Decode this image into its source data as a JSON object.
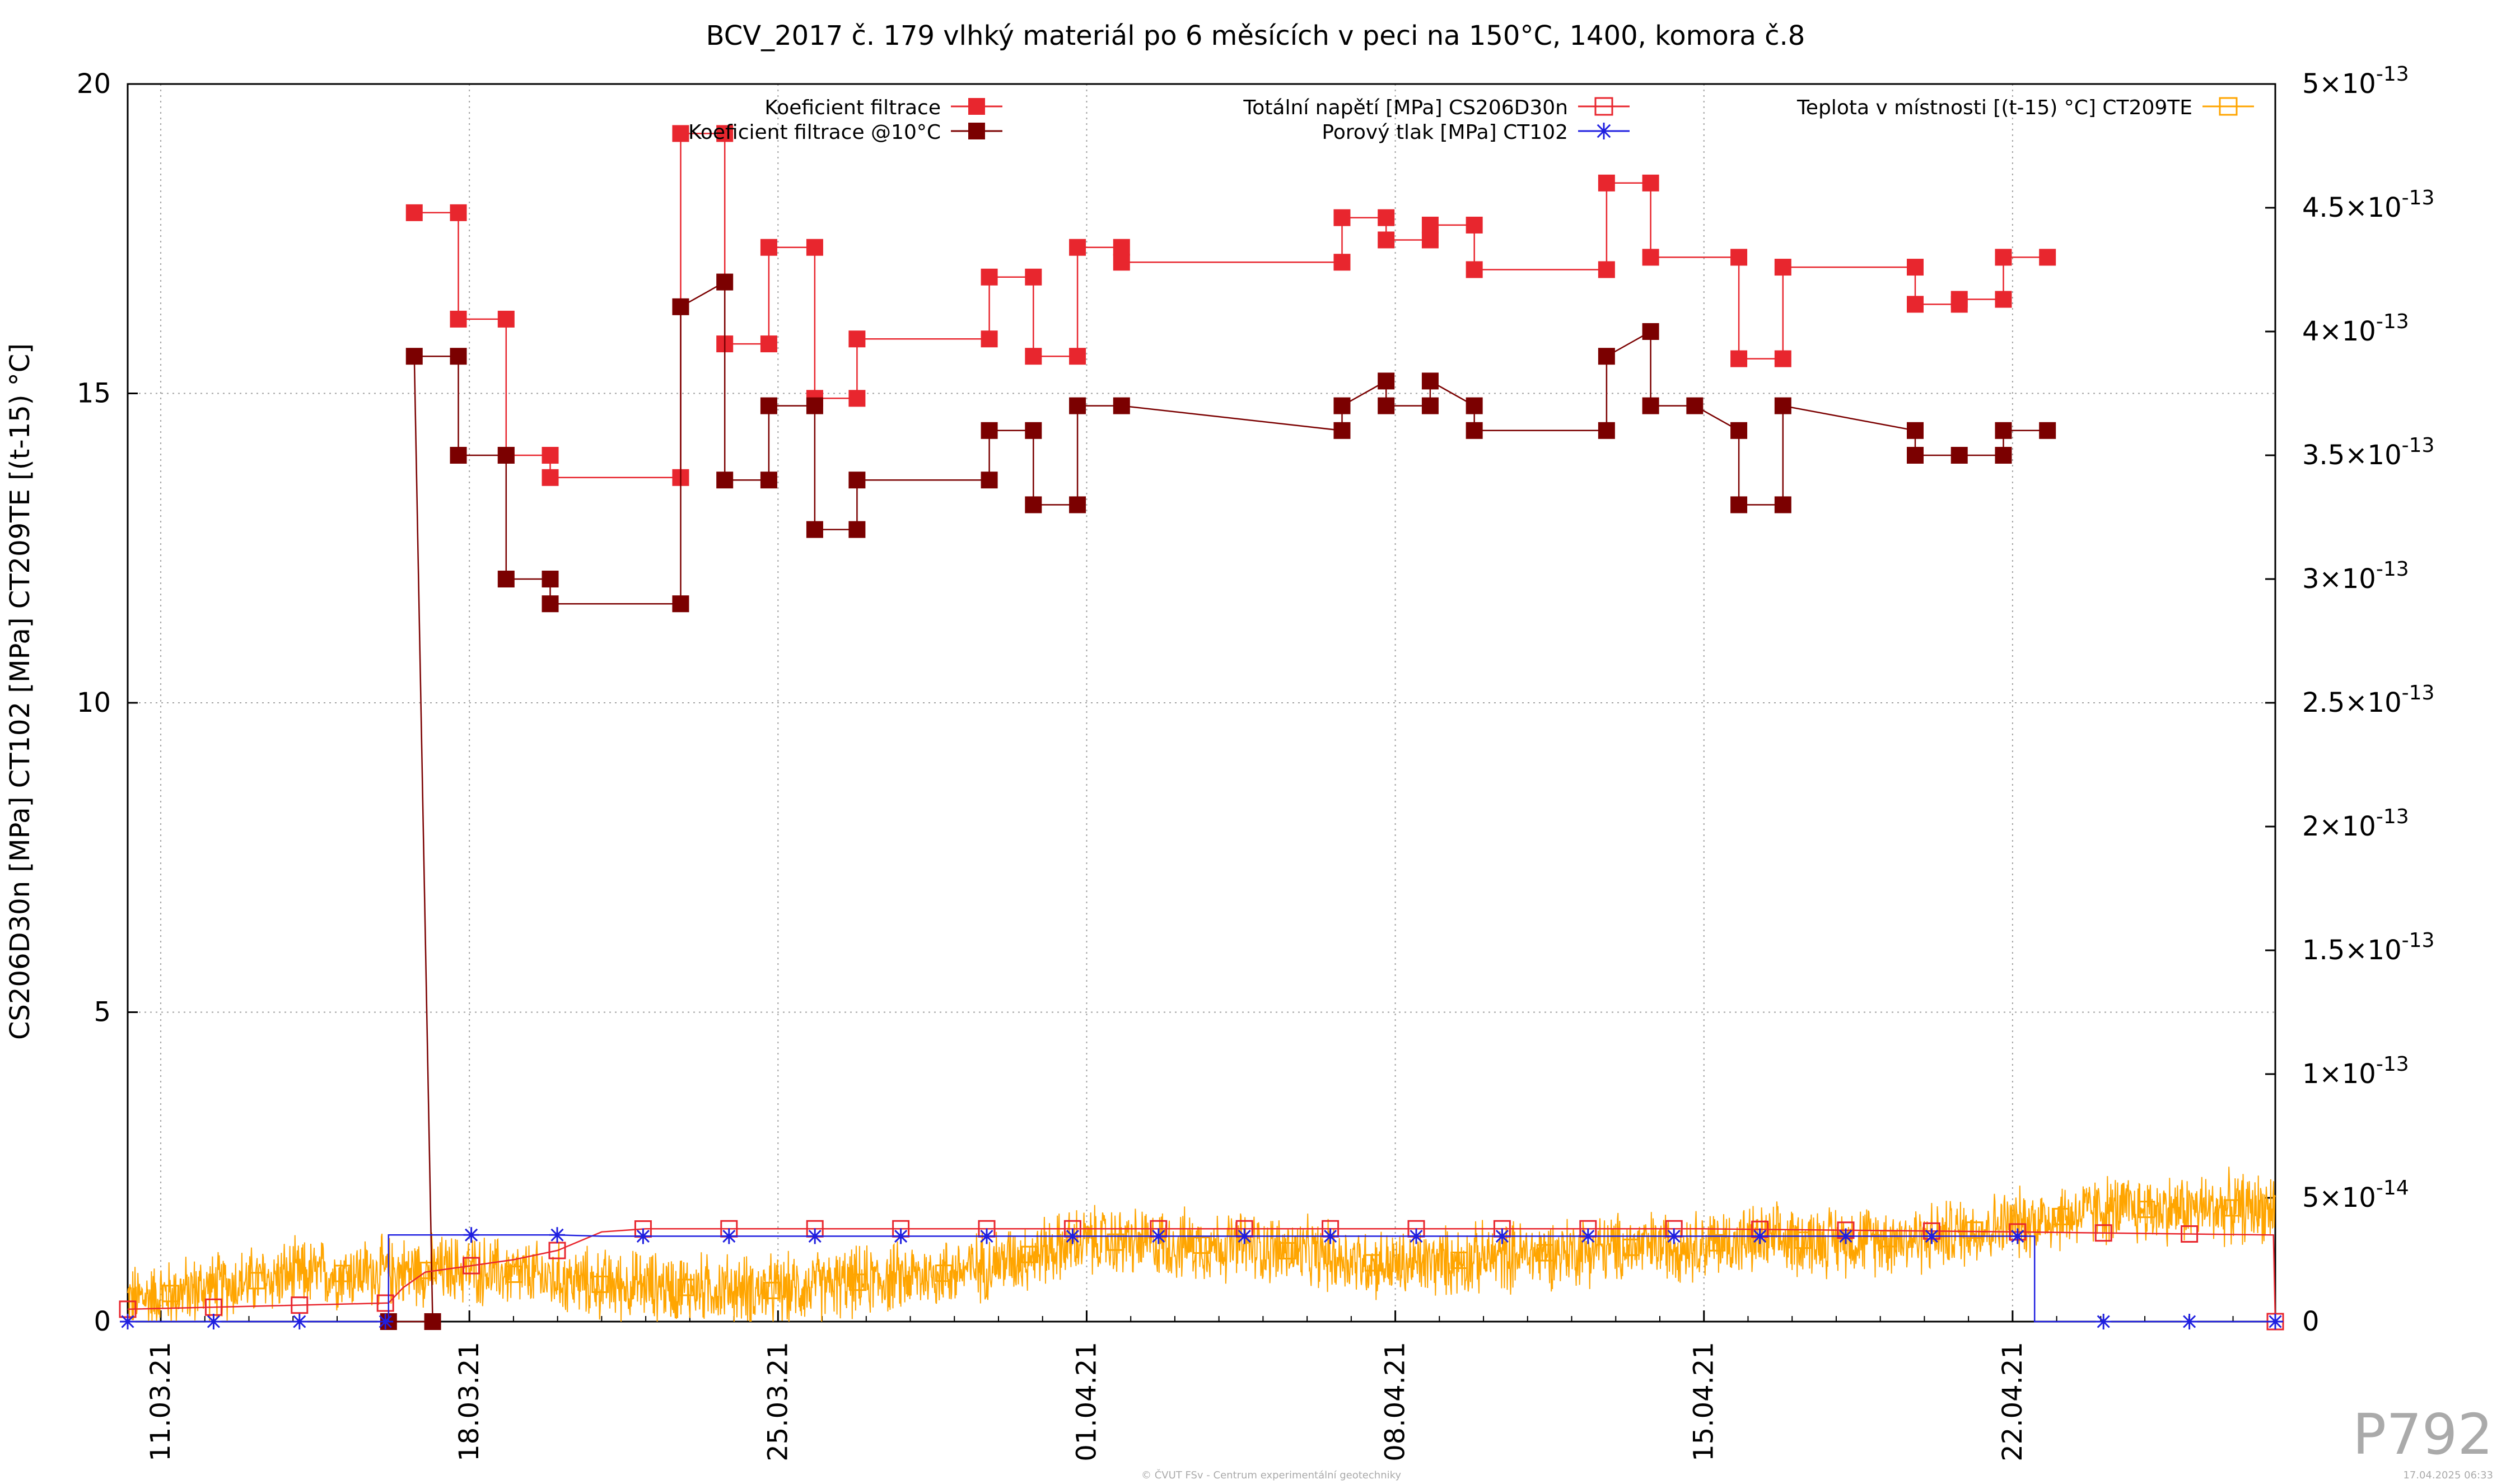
{
  "chart_data": {
    "type": "line",
    "title": "BCV_2017 č. 179 vlhký materiál po 6 měsících v peci na 150°C, 1400, komora č.8",
    "ylabel": "CS206D30n [MPa] CT102 [MPa] CT209TE [(t-15) °C]",
    "ylim": [
      0,
      20
    ],
    "y_ticks": [
      "0",
      "5",
      "10",
      "15",
      "20"
    ],
    "y2lim": [
      0,
      5e-13
    ],
    "y2_ticks": [
      {
        "mant": "0",
        "exp": ""
      },
      {
        "mant": "5×10",
        "exp": "-14"
      },
      {
        "mant": "1×10",
        "exp": "-13"
      },
      {
        "mant": "1.5×10",
        "exp": "-13"
      },
      {
        "mant": "2×10",
        "exp": "-13"
      },
      {
        "mant": "2.5×10",
        "exp": "-13"
      },
      {
        "mant": "3×10",
        "exp": "-13"
      },
      {
        "mant": "3.5×10",
        "exp": "-13"
      },
      {
        "mant": "4×10",
        "exp": "-13"
      },
      {
        "mant": "4.5×10",
        "exp": "-13"
      },
      {
        "mant": "5×10",
        "exp": "-13"
      }
    ],
    "xlim": [
      "2021-03-10 06:00",
      "2021-04-27 23:00"
    ],
    "x_ticks": [
      "11.03.21",
      "18.03.21",
      "25.03.21",
      "01.04.21",
      "08.04.21",
      "15.04.21",
      "22.04.21"
    ],
    "grid": true,
    "legend_position": "top",
    "series": [
      {
        "name": "Koeficient filtrace",
        "axis": "y2",
        "color": "#e8262e",
        "marker": "filled-square",
        "points": [
          [
            "2021-03-16 18:00",
            4.48e-13
          ],
          [
            "2021-03-17 18:00",
            4.48e-13
          ],
          [
            "2021-03-17 18:00",
            4.05e-13
          ],
          [
            "2021-03-18 20:00",
            4.05e-13
          ],
          [
            "2021-03-18 20:00",
            3.5e-13
          ],
          [
            "2021-03-19 20:00",
            3.5e-13
          ],
          [
            "2021-03-19 20:00",
            3.41e-13
          ],
          [
            "2021-03-22 19:00",
            3.41e-13
          ],
          [
            "2021-03-22 19:00",
            4.8e-13
          ],
          [
            "2021-03-23 19:00",
            4.8e-13
          ],
          [
            "2021-03-23 19:00",
            3.95e-13
          ],
          [
            "2021-03-24 19:00",
            3.95e-13
          ],
          [
            "2021-03-24 19:00",
            4.34e-13
          ],
          [
            "2021-03-25 20:00",
            4.34e-13
          ],
          [
            "2021-03-25 20:00",
            3.73e-13
          ],
          [
            "2021-03-26 19:00",
            3.73e-13
          ],
          [
            "2021-03-26 19:00",
            3.97e-13
          ],
          [
            "2021-03-29 19:00",
            3.97e-13
          ],
          [
            "2021-03-29 19:00",
            4.22e-13
          ],
          [
            "2021-03-30 19:00",
            4.22e-13
          ],
          [
            "2021-03-30 19:00",
            3.9e-13
          ],
          [
            "2021-03-31 19:00",
            3.9e-13
          ],
          [
            "2021-03-31 19:00",
            4.34e-13
          ],
          [
            "2021-04-01 19:00",
            4.34e-13
          ],
          [
            "2021-04-01 19:00",
            4.28e-13
          ],
          [
            "2021-04-06 19:00",
            4.28e-13
          ],
          [
            "2021-04-06 19:00",
            4.46e-13
          ],
          [
            "2021-04-07 19:00",
            4.46e-13
          ],
          [
            "2021-04-07 19:00",
            4.37e-13
          ],
          [
            "2021-04-08 19:00",
            4.37e-13
          ],
          [
            "2021-04-08 19:00",
            4.43e-13
          ],
          [
            "2021-04-09 19:00",
            4.43e-13
          ],
          [
            "2021-04-09 19:00",
            4.25e-13
          ],
          [
            "2021-04-12 19:00",
            4.25e-13
          ],
          [
            "2021-04-12 19:00",
            4.6e-13
          ],
          [
            "2021-04-13 19:00",
            4.6e-13
          ],
          [
            "2021-04-13 19:00",
            4.3e-13
          ],
          [
            "2021-04-15 19:00",
            4.3e-13
          ],
          [
            "2021-04-15 19:00",
            3.89e-13
          ],
          [
            "2021-04-16 19:00",
            3.89e-13
          ],
          [
            "2021-04-16 19:00",
            4.26e-13
          ],
          [
            "2021-04-19 19:00",
            4.26e-13
          ],
          [
            "2021-04-19 19:00",
            4.11e-13
          ],
          [
            "2021-04-20 19:00",
            4.11e-13
          ],
          [
            "2021-04-20 19:00",
            4.13e-13
          ],
          [
            "2021-04-21 19:00",
            4.13e-13
          ],
          [
            "2021-04-21 19:00",
            4.3e-13
          ],
          [
            "2021-04-22 19:00",
            4.3e-13
          ]
        ]
      },
      {
        "name": "Koeficient filtrace @10°C",
        "axis": "y2",
        "color": "#7b0000",
        "marker": "filled-square",
        "points": [
          [
            "2021-03-16 04:00",
            0
          ],
          [
            "2021-03-17 04:00",
            0
          ],
          [
            "2021-03-16 18:00",
            3.9e-13
          ],
          [
            "2021-03-17 18:00",
            3.9e-13
          ],
          [
            "2021-03-17 18:00",
            3.5e-13
          ],
          [
            "2021-03-18 20:00",
            3.5e-13
          ],
          [
            "2021-03-18 20:00",
            3e-13
          ],
          [
            "2021-03-19 20:00",
            3e-13
          ],
          [
            "2021-03-19 20:00",
            2.9e-13
          ],
          [
            "2021-03-22 19:00",
            2.9e-13
          ],
          [
            "2021-03-22 19:00",
            4.1e-13
          ],
          [
            "2021-03-23 19:00",
            4.2e-13
          ],
          [
            "2021-03-23 19:00",
            3.4e-13
          ],
          [
            "2021-03-24 19:00",
            3.4e-13
          ],
          [
            "2021-03-24 19:00",
            3.7e-13
          ],
          [
            "2021-03-25 20:00",
            3.7e-13
          ],
          [
            "2021-03-25 20:00",
            3.2e-13
          ],
          [
            "2021-03-26 19:00",
            3.2e-13
          ],
          [
            "2021-03-26 19:00",
            3.4e-13
          ],
          [
            "2021-03-29 19:00",
            3.4e-13
          ],
          [
            "2021-03-29 19:00",
            3.6e-13
          ],
          [
            "2021-03-30 19:00",
            3.6e-13
          ],
          [
            "2021-03-30 19:00",
            3.3e-13
          ],
          [
            "2021-03-31 19:00",
            3.3e-13
          ],
          [
            "2021-03-31 19:00",
            3.7e-13
          ],
          [
            "2021-04-01 19:00",
            3.7e-13
          ],
          [
            "2021-04-06 19:00",
            3.6e-13
          ],
          [
            "2021-04-06 19:00",
            3.7e-13
          ],
          [
            "2021-04-07 19:00",
            3.8e-13
          ],
          [
            "2021-04-07 19:00",
            3.7e-13
          ],
          [
            "2021-04-08 19:00",
            3.7e-13
          ],
          [
            "2021-04-08 19:00",
            3.8e-13
          ],
          [
            "2021-04-09 19:00",
            3.7e-13
          ],
          [
            "2021-04-09 19:00",
            3.6e-13
          ],
          [
            "2021-04-12 19:00",
            3.6e-13
          ],
          [
            "2021-04-12 19:00",
            3.9e-13
          ],
          [
            "2021-04-13 19:00",
            4e-13
          ],
          [
            "2021-04-13 19:00",
            3.7e-13
          ],
          [
            "2021-04-14 19:00",
            3.7e-13
          ],
          [
            "2021-04-15 19:00",
            3.6e-13
          ],
          [
            "2021-04-15 19:00",
            3.3e-13
          ],
          [
            "2021-04-16 19:00",
            3.3e-13
          ],
          [
            "2021-04-16 19:00",
            3.7e-13
          ],
          [
            "2021-04-19 19:00",
            3.6e-13
          ],
          [
            "2021-04-19 19:00",
            3.5e-13
          ],
          [
            "2021-04-20 19:00",
            3.5e-13
          ],
          [
            "2021-04-21 19:00",
            3.5e-13
          ],
          [
            "2021-04-21 19:00",
            3.6e-13
          ],
          [
            "2021-04-22 19:00",
            3.6e-13
          ]
        ]
      },
      {
        "name": "Totální napětí [MPa] CS206D30n",
        "axis": "y",
        "color": "#e8262e",
        "marker": "open-square",
        "points": [
          [
            "2021-03-10 06:00",
            0.2
          ],
          [
            "2021-03-16 04:00",
            0.3
          ],
          [
            "2021-03-16 12:00",
            0.55
          ],
          [
            "2021-03-17 00:00",
            0.8
          ],
          [
            "2021-03-18 00:00",
            0.9
          ],
          [
            "2021-03-19 00:00",
            1.0
          ],
          [
            "2021-03-20 00:00",
            1.15
          ],
          [
            "2021-03-21 00:00",
            1.45
          ],
          [
            "2021-03-22 00:00",
            1.5
          ],
          [
            "2021-03-25 00:00",
            1.5
          ],
          [
            "2021-04-01 00:00",
            1.5
          ],
          [
            "2021-04-08 00:00",
            1.5
          ],
          [
            "2021-04-15 00:00",
            1.5
          ],
          [
            "2021-04-22 00:00",
            1.45
          ],
          [
            "2021-04-27 22:00",
            1.4
          ],
          [
            "2021-04-27 23:00",
            0.0
          ]
        ]
      },
      {
        "name": "Porový tlak [MPa] CT102",
        "axis": "y",
        "color": "#1f1fe0",
        "marker": "star",
        "points": [
          [
            "2021-03-10 06:00",
            0
          ],
          [
            "2021-03-16 04:00",
            0
          ],
          [
            "2021-03-16 04:00",
            1.4
          ],
          [
            "2021-03-20 00:00",
            1.4
          ],
          [
            "2021-03-21 00:00",
            1.38
          ],
          [
            "2021-04-01 00:00",
            1.38
          ],
          [
            "2021-04-22 12:00",
            1.38
          ],
          [
            "2021-04-22 12:00",
            0
          ],
          [
            "2021-04-27 23:00",
            0
          ]
        ]
      },
      {
        "name": "Teplota v místnosti [(t-15) °C] CT209TE",
        "axis": "y",
        "color": "#ffa500",
        "marker": "open-square",
        "trend": [
          [
            "2021-03-10 06:00",
            0.35
          ],
          [
            "2021-03-14 00:00",
            0.75
          ],
          [
            "2021-03-18 00:00",
            0.85
          ],
          [
            "2021-03-21 00:00",
            0.6
          ],
          [
            "2021-03-25 00:00",
            0.5
          ],
          [
            "2021-03-29 00:00",
            0.8
          ],
          [
            "2021-04-01 00:00",
            1.3
          ],
          [
            "2021-04-05 00:00",
            1.2
          ],
          [
            "2021-04-08 00:00",
            0.9
          ],
          [
            "2021-04-12 00:00",
            1.15
          ],
          [
            "2021-04-16 00:00",
            1.3
          ],
          [
            "2021-04-20 00:00",
            1.35
          ],
          [
            "2021-04-24 00:00",
            1.8
          ],
          [
            "2021-04-27 23:00",
            1.85
          ]
        ],
        "noise_amplitude": 0.45
      }
    ]
  },
  "footer": {
    "credit": "© ČVUT FSv - Centrum experimentální geotechniky",
    "timestamp": "17.04.2025 06:33",
    "code": "P792"
  }
}
